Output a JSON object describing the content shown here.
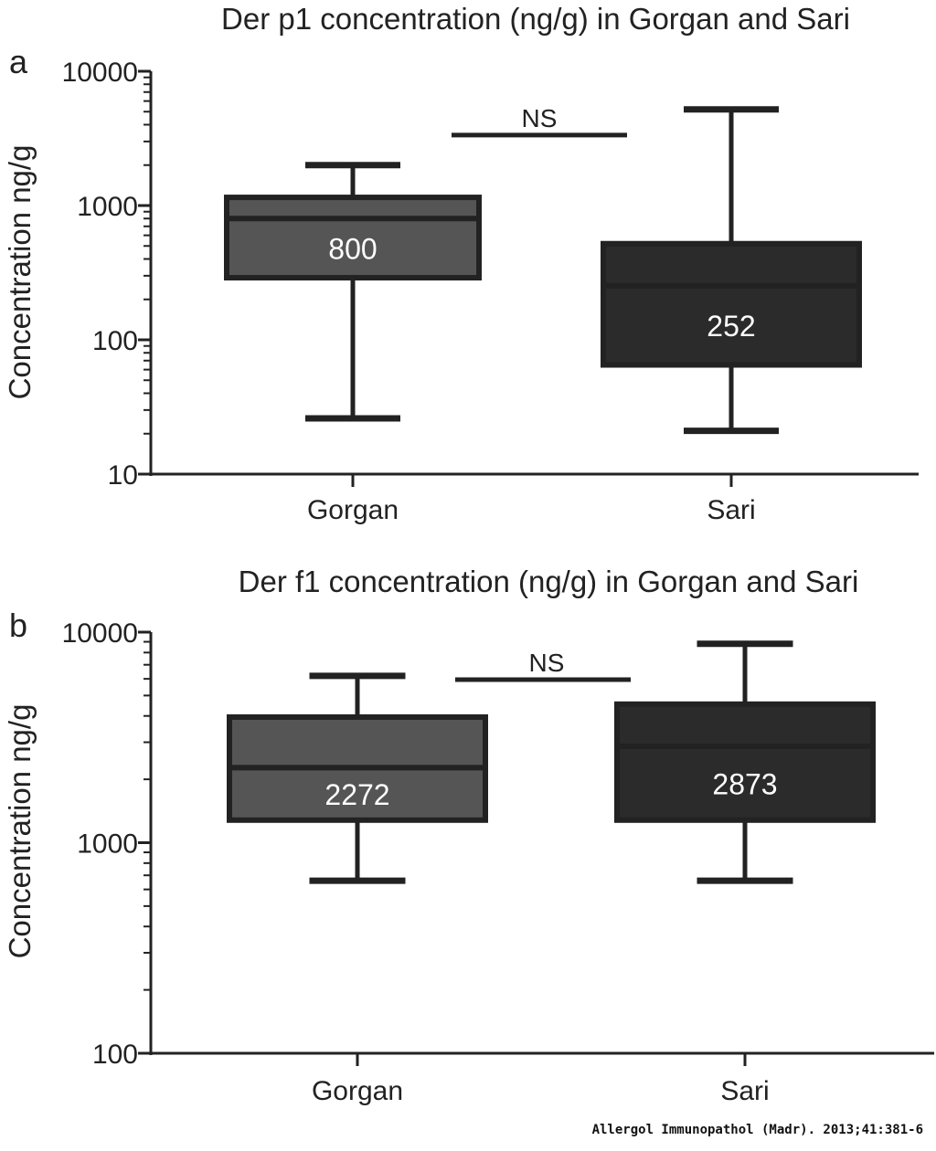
{
  "chart_data": [
    {
      "type": "box",
      "panel_label": "a",
      "title": "Der p1 concentration (ng/g) in Gorgan and Sari",
      "ylabel": "Concentration ng/g",
      "xlabel": "",
      "yscale": "log",
      "ylim": [
        10,
        10000
      ],
      "yticks": [
        "10",
        "100",
        "1000",
        "10000"
      ],
      "categories": [
        "Gorgan",
        "Sari"
      ],
      "boxes": [
        {
          "category": "Gorgan",
          "whisker_low": 26,
          "q1": 290,
          "median": 800,
          "q3": 1150,
          "whisker_high": 2000,
          "label": "800",
          "color": "#555555"
        },
        {
          "category": "Sari",
          "whisker_low": 21,
          "q1": 65,
          "median": 252,
          "q3": 520,
          "whisker_high": 5200,
          "label": "252",
          "color": "#2b2b2b"
        }
      ],
      "annotation": {
        "text": "NS",
        "y": 3350
      }
    },
    {
      "type": "box",
      "panel_label": "b",
      "title": "Der f1 concentration (ng/g) in Gorgan and Sari",
      "ylabel": "Concentration ng/g",
      "xlabel": "",
      "yscale": "log",
      "ylim": [
        100,
        10000
      ],
      "yticks": [
        "100",
        "1000",
        "10000"
      ],
      "categories": [
        "Gorgan",
        "Sari"
      ],
      "boxes": [
        {
          "category": "Gorgan",
          "whisker_low": 660,
          "q1": 1280,
          "median": 2272,
          "q3": 3950,
          "whisker_high": 6200,
          "label": "2272",
          "color": "#555555"
        },
        {
          "category": "Sari",
          "whisker_low": 660,
          "q1": 1280,
          "median": 2873,
          "q3": 4550,
          "whisker_high": 8800,
          "label": "2873",
          "color": "#2b2b2b"
        }
      ],
      "annotation": {
        "text": "NS",
        "y": 5950
      }
    }
  ],
  "caption": "Allergol  Immunopathol (Madr). 2013;41:381-6"
}
